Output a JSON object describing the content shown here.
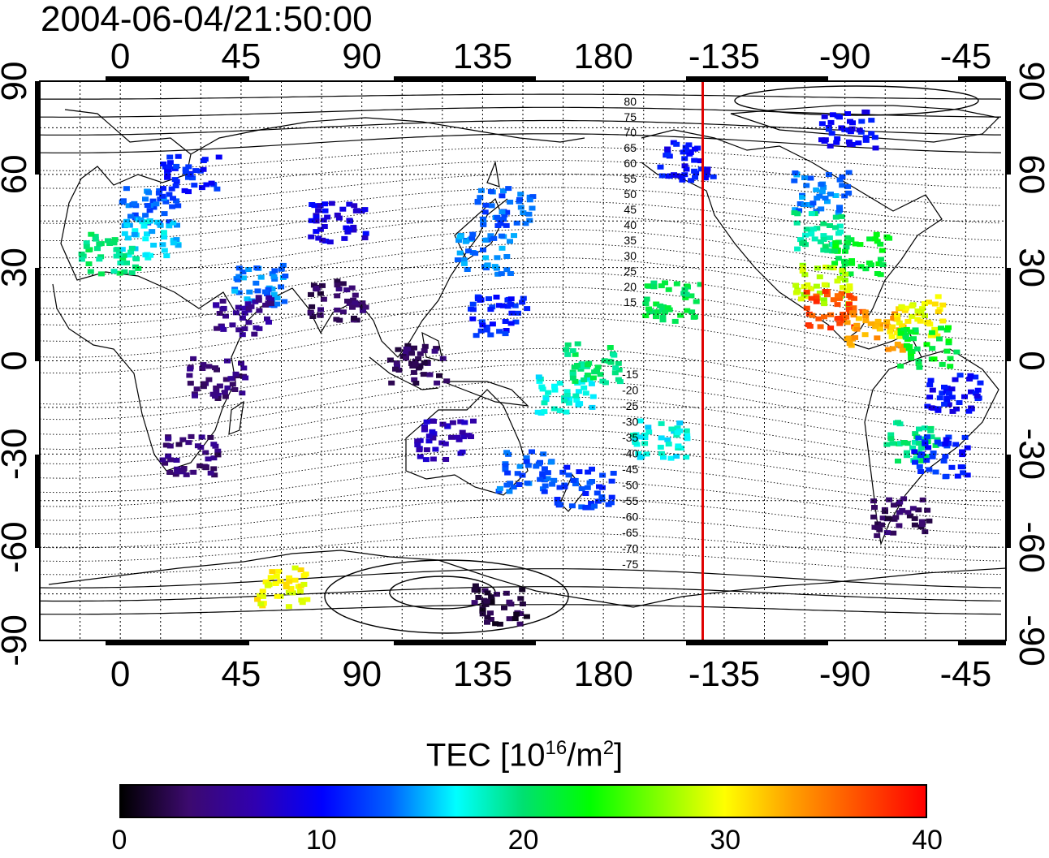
{
  "title": "2004-06-04/21:50:00",
  "map": {
    "projection": "equirectangular",
    "center_lon": 150,
    "lon_ticks": [
      "0",
      "45",
      "90",
      "135",
      "180",
      "-135",
      "-90",
      "-45"
    ],
    "lat_ticks_left": [
      "90",
      "60",
      "30",
      "0",
      "-30",
      "-60",
      "-90"
    ],
    "lat_ticks_right": [
      "90",
      "60",
      "30",
      "0",
      "-30",
      "-60",
      "-90"
    ],
    "grid": true,
    "terminator_lon": -143,
    "terminator_color": "#e00000",
    "contour_labels_north": [
      "80",
      "75",
      "70",
      "65",
      "60",
      "55",
      "50",
      "45",
      "40",
      "35",
      "30",
      "25",
      "20",
      "15"
    ],
    "contour_labels_south": [
      "-15",
      "-20",
      "-25",
      "-30",
      "-35",
      "-40",
      "-45",
      "-50",
      "-55",
      "-60",
      "-65",
      "-70",
      "-75"
    ]
  },
  "colorbar": {
    "title_prefix": "TEC  [10",
    "title_exp": "16",
    "title_mid": "/m",
    "title_exp2": "2",
    "title_suffix": "]",
    "ticks": [
      "0",
      "10",
      "20",
      "30",
      "40"
    ],
    "range": [
      0,
      40
    ],
    "colormap": [
      "#000000",
      "#3c0a6e",
      "#3000b0",
      "#0000ff",
      "#0060ff",
      "#00ffff",
      "#00e070",
      "#00ff00",
      "#80ff00",
      "#ffff00",
      "#ffa000",
      "#ff5000",
      "#ff0000"
    ]
  },
  "chart_data": {
    "type": "heatmap",
    "title": "2004-06-04/21:50:00",
    "variable": "TEC  [10^16/m^2]",
    "color_range": [
      0,
      40
    ],
    "regions": [
      {
        "lat": 50,
        "lon": 10,
        "tec": 13
      },
      {
        "lat": 40,
        "lon": 10,
        "tec": 16
      },
      {
        "lat": 35,
        "lon": -5,
        "tec": 20
      },
      {
        "lat": 60,
        "lon": 25,
        "tec": 11
      },
      {
        "lat": 25,
        "lon": 50,
        "tec": 14
      },
      {
        "lat": 15,
        "lon": 45,
        "tec": 5
      },
      {
        "lat": -5,
        "lon": 35,
        "tec": 4
      },
      {
        "lat": -30,
        "lon": 25,
        "tec": 4
      },
      {
        "lat": 20,
        "lon": 80,
        "tec": 3
      },
      {
        "lat": 45,
        "lon": 80,
        "tec": 9
      },
      {
        "lat": 0,
        "lon": 110,
        "tec": 3
      },
      {
        "lat": 35,
        "lon": 135,
        "tec": 14
      },
      {
        "lat": 50,
        "lon": 142,
        "tec": 13
      },
      {
        "lat": 15,
        "lon": 140,
        "tec": 11
      },
      {
        "lat": -25,
        "lon": 120,
        "tec": 7
      },
      {
        "lat": -35,
        "lon": 150,
        "tec": 13
      },
      {
        "lat": -40,
        "lon": 172,
        "tec": 12
      },
      {
        "lat": -10,
        "lon": 165,
        "tec": 17
      },
      {
        "lat": 0,
        "lon": 175,
        "tec": 20
      },
      {
        "lat": -25,
        "lon": -160,
        "tec": 17
      },
      {
        "lat": 20,
        "lon": -155,
        "tec": 21
      },
      {
        "lat": 65,
        "lon": -150,
        "tec": 10
      },
      {
        "lat": 75,
        "lon": -90,
        "tec": 10
      },
      {
        "lat": 55,
        "lon": -100,
        "tec": 14
      },
      {
        "lat": 42,
        "lon": -100,
        "tec": 19
      },
      {
        "lat": 35,
        "lon": -85,
        "tec": 22
      },
      {
        "lat": 25,
        "lon": -100,
        "tec": 28
      },
      {
        "lat": 17,
        "lon": -95,
        "tec": 37
      },
      {
        "lat": 10,
        "lon": -80,
        "tec": 33
      },
      {
        "lat": 15,
        "lon": -65,
        "tec": 30
      },
      {
        "lat": 5,
        "lon": -60,
        "tec": 22
      },
      {
        "lat": -10,
        "lon": -50,
        "tec": 10
      },
      {
        "lat": -25,
        "lon": -65,
        "tec": 20
      },
      {
        "lat": -30,
        "lon": -55,
        "tec": 11
      },
      {
        "lat": -50,
        "lon": -70,
        "tec": 3
      },
      {
        "lat": -72,
        "lon": 60,
        "tec": 30
      },
      {
        "lat": -78,
        "lon": 140,
        "tec": 2
      }
    ]
  }
}
